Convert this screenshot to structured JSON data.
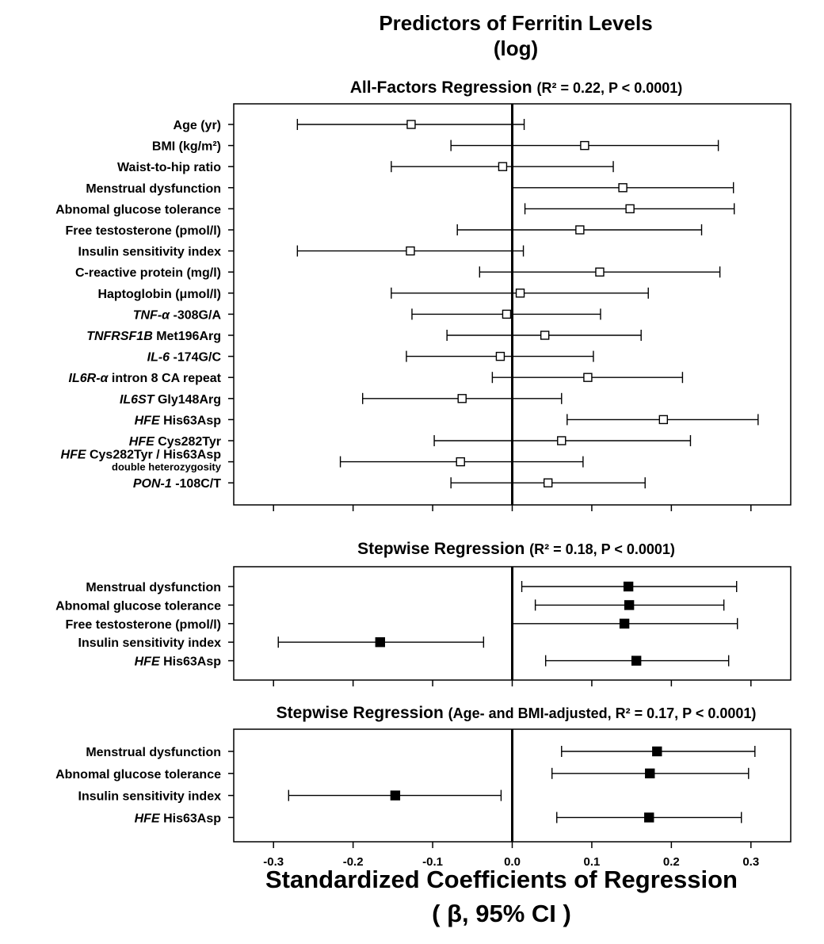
{
  "figure": {
    "title_line1": "Predictors of Ferritin Levels",
    "title_line2": "(log)",
    "xlabel_line1": "Standardized Coefficients of Regression",
    "xlabel_line2": "( β, 95% CI )"
  },
  "chart_data": [
    {
      "type": "scatter",
      "subtype": "forest-plot",
      "title_main": "All-Factors Regression",
      "title_stats": "(R² = 0.22, P < 0.0001)",
      "marker": "open-square",
      "xlim": [
        -0.35,
        0.35
      ],
      "xticks": [],
      "reference_line": 0.0,
      "categories": [
        {
          "parts": [
            {
              "t": "Age (yr)",
              "i": false
            }
          ]
        },
        {
          "parts": [
            {
              "t": "BMI (kg/m²)",
              "i": false
            }
          ]
        },
        {
          "parts": [
            {
              "t": "Waist-to-hip ratio",
              "i": false
            }
          ]
        },
        {
          "parts": [
            {
              "t": "Menstrual dysfunction",
              "i": false
            }
          ]
        },
        {
          "parts": [
            {
              "t": "Abnomal glucose tolerance",
              "i": false
            }
          ]
        },
        {
          "parts": [
            {
              "t": "Free testosterone (pmol/l)",
              "i": false
            }
          ]
        },
        {
          "parts": [
            {
              "t": "Insulin sensitivity index",
              "i": false
            }
          ]
        },
        {
          "parts": [
            {
              "t": "C-reactive protein (mg/l)",
              "i": false
            }
          ]
        },
        {
          "parts": [
            {
              "t": "Haptoglobin (μmol/l)",
              "i": false
            }
          ]
        },
        {
          "parts": [
            {
              "t": "TNF-α",
              "i": true
            },
            {
              "t": " -308G/A",
              "i": false
            }
          ]
        },
        {
          "parts": [
            {
              "t": "TNFRSF1B",
              "i": true
            },
            {
              "t": " Met196Arg",
              "i": false
            }
          ]
        },
        {
          "parts": [
            {
              "t": "IL-6",
              "i": true
            },
            {
              "t": " -174G/C",
              "i": false
            }
          ]
        },
        {
          "parts": [
            {
              "t": "IL6R-α",
              "i": true
            },
            {
              "t": " intron 8 CA repeat",
              "i": false
            }
          ]
        },
        {
          "parts": [
            {
              "t": "IL6ST",
              "i": true
            },
            {
              "t": " Gly148Arg",
              "i": false
            }
          ]
        },
        {
          "parts": [
            {
              "t": "HFE",
              "i": true
            },
            {
              "t": " His63Asp",
              "i": false
            }
          ]
        },
        {
          "parts": [
            {
              "t": "HFE",
              "i": true
            },
            {
              "t": " Cys282Tyr",
              "i": false
            }
          ]
        },
        {
          "parts": [
            {
              "t": "HFE",
              "i": true
            },
            {
              "t": " Cys282Tyr / His63Asp",
              "i": false
            }
          ],
          "sub": "double heterozygosity"
        },
        {
          "parts": [
            {
              "t": "PON-1",
              "i": true
            },
            {
              "t": " -108C/T",
              "i": false
            }
          ]
        }
      ],
      "estimates": [
        -0.127,
        0.091,
        -0.012,
        0.139,
        0.148,
        0.085,
        -0.128,
        0.11,
        0.01,
        -0.007,
        0.041,
        -0.015,
        0.095,
        -0.063,
        0.19,
        0.062,
        -0.065,
        0.045
      ],
      "ci_low": [
        -0.27,
        -0.077,
        -0.152,
        0.0,
        0.016,
        -0.069,
        -0.27,
        -0.041,
        -0.152,
        -0.126,
        -0.082,
        -0.133,
        -0.025,
        -0.188,
        0.069,
        -0.098,
        -0.216,
        -0.077
      ],
      "ci_high": [
        0.015,
        0.259,
        0.127,
        0.278,
        0.279,
        0.238,
        0.014,
        0.261,
        0.171,
        0.111,
        0.162,
        0.102,
        0.214,
        0.062,
        0.309,
        0.224,
        0.089,
        0.167
      ]
    },
    {
      "type": "scatter",
      "subtype": "forest-plot",
      "title_main": "Stepwise Regression",
      "title_stats": "(R² = 0.18, P < 0.0001)",
      "marker": "filled-square",
      "xlim": [
        -0.35,
        0.35
      ],
      "xticks": [],
      "reference_line": 0.0,
      "categories": [
        {
          "parts": [
            {
              "t": "Menstrual dysfunction",
              "i": false
            }
          ]
        },
        {
          "parts": [
            {
              "t": "Abnomal glucose tolerance",
              "i": false
            }
          ]
        },
        {
          "parts": [
            {
              "t": "Free testosterone (pmol/l)",
              "i": false
            }
          ]
        },
        {
          "parts": [
            {
              "t": "Insulin sensitivity index",
              "i": false
            }
          ]
        },
        {
          "parts": [
            {
              "t": "HFE",
              "i": true
            },
            {
              "t": " His63Asp",
              "i": false
            }
          ]
        }
      ],
      "estimates": [
        0.146,
        0.147,
        0.141,
        -0.166,
        0.156
      ],
      "ci_low": [
        0.012,
        0.029,
        0.0,
        -0.294,
        0.042
      ],
      "ci_high": [
        0.282,
        0.266,
        0.283,
        -0.036,
        0.272
      ]
    },
    {
      "type": "scatter",
      "subtype": "forest-plot",
      "title_main": "Stepwise Regression",
      "title_stats": "(Age- and BMI-adjusted, R² = 0.17, P < 0.0001)",
      "marker": "filled-square",
      "xlim": [
        -0.35,
        0.35
      ],
      "xticks": [
        -0.3,
        -0.2,
        -0.1,
        0.0,
        0.1,
        0.2,
        0.3
      ],
      "xtick_labels": [
        "-0.3",
        "-0.2",
        "-0.1",
        "0.0",
        "0.1",
        "0.2",
        "0.3"
      ],
      "reference_line": 0.0,
      "categories": [
        {
          "parts": [
            {
              "t": "Menstrual dysfunction",
              "i": false
            }
          ]
        },
        {
          "parts": [
            {
              "t": "Abnomal glucose tolerance",
              "i": false
            }
          ]
        },
        {
          "parts": [
            {
              "t": "Insulin sensitivity index",
              "i": false
            }
          ]
        },
        {
          "parts": [
            {
              "t": "HFE",
              "i": true
            },
            {
              "t": " His63Asp",
              "i": false
            }
          ]
        }
      ],
      "estimates": [
        0.182,
        0.173,
        -0.147,
        0.172
      ],
      "ci_low": [
        0.062,
        0.05,
        -0.281,
        0.056
      ],
      "ci_high": [
        0.305,
        0.297,
        -0.014,
        0.288
      ]
    }
  ]
}
